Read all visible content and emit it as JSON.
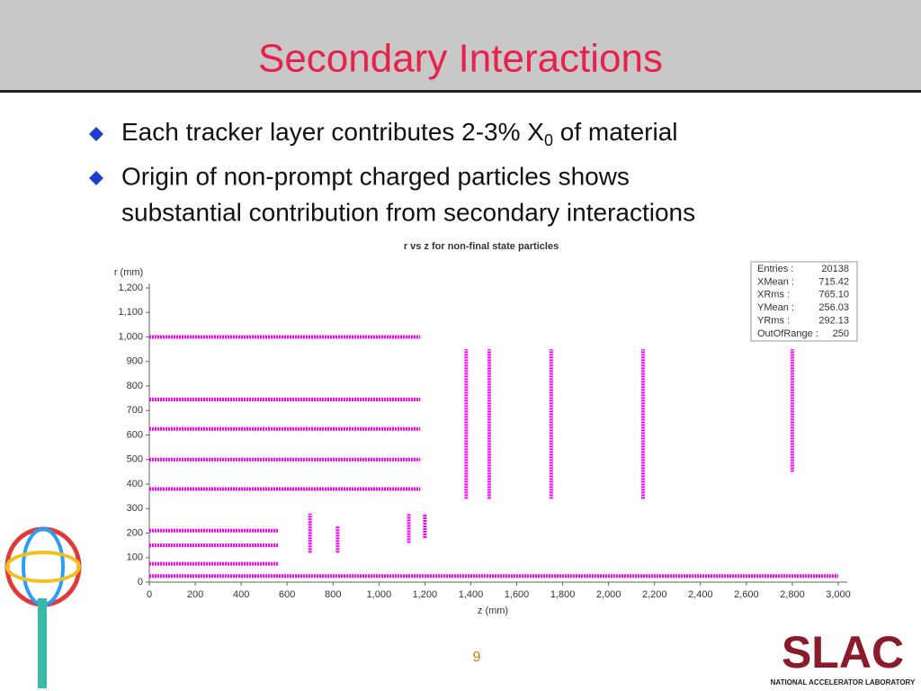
{
  "slide": {
    "title": "Secondary Interactions",
    "bullets": [
      {
        "before": "Each tracker layer contributes 2-3% X",
        "subscript": "0",
        "after": " of material"
      },
      {
        "lines": [
          "Origin of non-prompt charged particles shows",
          "substantial contribution from secondary interactions"
        ]
      }
    ],
    "page_number": "9",
    "logo": {
      "name": "SLAC",
      "subtitle": "NATIONAL ACCELERATOR LABORATORY"
    }
  },
  "chart_data": {
    "type": "scatter",
    "title": "r vs z for non-final state particles",
    "x_label": "z (mm)",
    "y_label": "r (mm)",
    "color": "#ff00ff",
    "xlim": [
      0,
      3000
    ],
    "ylim": [
      0,
      1200
    ],
    "xticks": [
      0,
      200,
      400,
      600,
      800,
      {
        "value": 1000,
        "label": "1,000"
      },
      {
        "value": 1200,
        "label": "1,200"
      },
      {
        "value": 1400,
        "label": "1,400"
      },
      {
        "value": 1600,
        "label": "1,600"
      },
      {
        "value": 1800,
        "label": "1,800"
      },
      {
        "value": 2000,
        "label": "2,000"
      },
      {
        "value": 2200,
        "label": "2,200"
      },
      {
        "value": 2400,
        "label": "2,400"
      },
      {
        "value": 2600,
        "label": "2,600"
      },
      {
        "value": 2800,
        "label": "2,800"
      },
      {
        "value": 3000,
        "label": "3,000"
      }
    ],
    "yticks": [
      0,
      100,
      200,
      300,
      400,
      500,
      600,
      700,
      800,
      900,
      {
        "value": 1000,
        "label": "1,000"
      },
      {
        "value": 1100,
        "label": "1,100"
      },
      {
        "value": 1200,
        "label": "1,200"
      }
    ],
    "layers": [
      {
        "x": [
          0,
          1180
        ],
        "y": [
          1000,
          1000
        ]
      },
      {
        "x": [
          0,
          1180
        ],
        "y": [
          745,
          745
        ]
      },
      {
        "x": [
          0,
          1180
        ],
        "y": [
          625,
          625
        ]
      },
      {
        "x": [
          0,
          1180
        ],
        "y": [
          500,
          500
        ]
      },
      {
        "x": [
          0,
          1180
        ],
        "y": [
          380,
          380
        ]
      },
      {
        "x": [
          0,
          560
        ],
        "y": [
          210,
          210
        ]
      },
      {
        "x": [
          0,
          560
        ],
        "y": [
          150,
          150
        ]
      },
      {
        "x": [
          0,
          560
        ],
        "y": [
          75,
          75
        ]
      },
      {
        "x": [
          0,
          3000
        ],
        "y": [
          25,
          25
        ]
      },
      {
        "x": [
          1380,
          1380
        ],
        "y": [
          340,
          950
        ]
      },
      {
        "x": [
          1480,
          1480
        ],
        "y": [
          340,
          950
        ]
      },
      {
        "x": [
          1750,
          1750
        ],
        "y": [
          340,
          950
        ]
      },
      {
        "x": [
          2150,
          2150
        ],
        "y": [
          340,
          950
        ]
      },
      {
        "x": [
          2800,
          2800
        ],
        "y": [
          450,
          950
        ]
      },
      {
        "x": [
          700,
          700
        ],
        "y": [
          120,
          280
        ]
      },
      {
        "x": [
          820,
          820
        ],
        "y": [
          120,
          230
        ]
      },
      {
        "x": [
          1130,
          1130
        ],
        "y": [
          160,
          280
        ]
      },
      {
        "x": [
          1200,
          1200
        ],
        "y": [
          180,
          280
        ]
      }
    ],
    "stats": [
      {
        "name": "Entries :",
        "value": 20138
      },
      {
        "name": "XMean :",
        "value": 715.42
      },
      {
        "name": "XRms :",
        "value": {
          "value": 765.1,
          "label": "765.10"
        }
      },
      {
        "name": "YMean :",
        "value": 256.03
      },
      {
        "name": "YRms :",
        "value": 292.13
      },
      {
        "name": "OutOfRange :",
        "value": 250
      }
    ]
  }
}
